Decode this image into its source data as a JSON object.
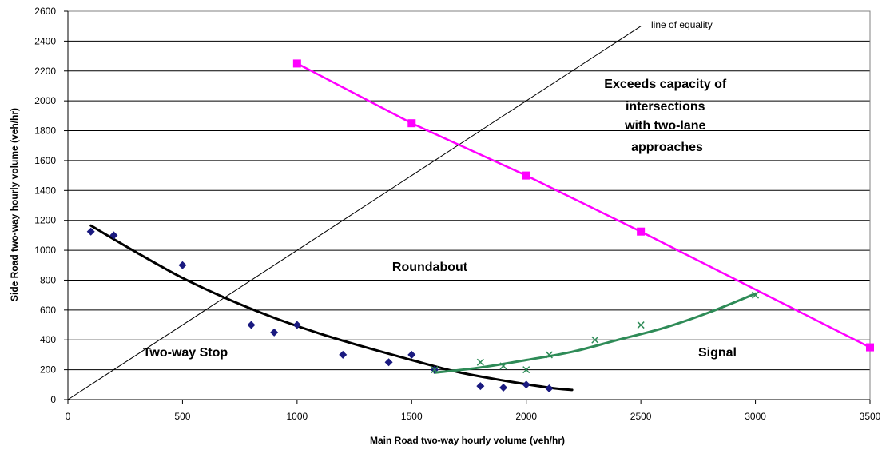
{
  "chart_data": {
    "type": "scatter",
    "xlabel": "Main Road two-way hourly volume (veh/hr)",
    "ylabel": "Side Road two-way hourly volume (veh/hr)",
    "xlim": [
      0,
      3500
    ],
    "ylim": [
      0,
      2600
    ],
    "x_ticks": [
      "0",
      "500",
      "1000",
      "1500",
      "2000",
      "2500",
      "3000",
      "3500"
    ],
    "y_ticks": [
      "0",
      "200",
      "400",
      "600",
      "800",
      "1000",
      "1200",
      "1400",
      "1600",
      "1800",
      "2000",
      "2200",
      "2400",
      "2600"
    ],
    "grid": "horizontal",
    "series": [
      {
        "kind": "diamond-markers",
        "color": "#1a1a80",
        "points": [
          [
            100,
            1125
          ],
          [
            200,
            1100
          ],
          [
            500,
            900
          ],
          [
            800,
            500
          ],
          [
            900,
            450
          ],
          [
            1000,
            500
          ],
          [
            1200,
            300
          ],
          [
            1400,
            250
          ],
          [
            1500,
            300
          ],
          [
            1600,
            200
          ],
          [
            1800,
            90
          ],
          [
            1900,
            80
          ],
          [
            2000,
            100
          ],
          [
            2100,
            75
          ]
        ]
      },
      {
        "kind": "trend-curve",
        "color": "#000000",
        "points": [
          [
            100,
            1165
          ],
          [
            300,
            985
          ],
          [
            500,
            815
          ],
          [
            700,
            672
          ],
          [
            900,
            548
          ],
          [
            1100,
            442
          ],
          [
            1300,
            350
          ],
          [
            1500,
            265
          ],
          [
            1700,
            185
          ],
          [
            1900,
            128
          ],
          [
            2100,
            80
          ],
          [
            2200,
            65
          ]
        ]
      },
      {
        "kind": "x-markers",
        "color": "#2e8b57",
        "points": [
          [
            1600,
            200
          ],
          [
            1800,
            250
          ],
          [
            1900,
            225
          ],
          [
            2000,
            200
          ],
          [
            2100,
            300
          ],
          [
            2300,
            400
          ],
          [
            2500,
            500
          ],
          [
            3000,
            700
          ]
        ]
      },
      {
        "kind": "trend-curve",
        "color": "#2e8b57",
        "points": [
          [
            1600,
            180
          ],
          [
            1800,
            215
          ],
          [
            2000,
            265
          ],
          [
            2200,
            320
          ],
          [
            2400,
            400
          ],
          [
            2600,
            480
          ],
          [
            2800,
            585
          ],
          [
            3000,
            710
          ]
        ]
      },
      {
        "kind": "line-square-markers",
        "color": "#ff00ff",
        "points": [
          [
            1000,
            2250
          ],
          [
            1500,
            1850
          ],
          [
            2000,
            1500
          ],
          [
            2500,
            1125
          ],
          [
            3500,
            350
          ]
        ]
      },
      {
        "kind": "reference-line",
        "color": "#000000",
        "points": [
          [
            0,
            0
          ],
          [
            2500,
            2500
          ]
        ]
      }
    ],
    "annotations": {
      "equality": "line of equality",
      "capacity_lines": [
        "Exceeds capacity of",
        "intersections",
        "with two-lane",
        "approaches"
      ],
      "roundabout": "Roundabout",
      "stop": "Two-way Stop",
      "signal": "Signal"
    }
  }
}
